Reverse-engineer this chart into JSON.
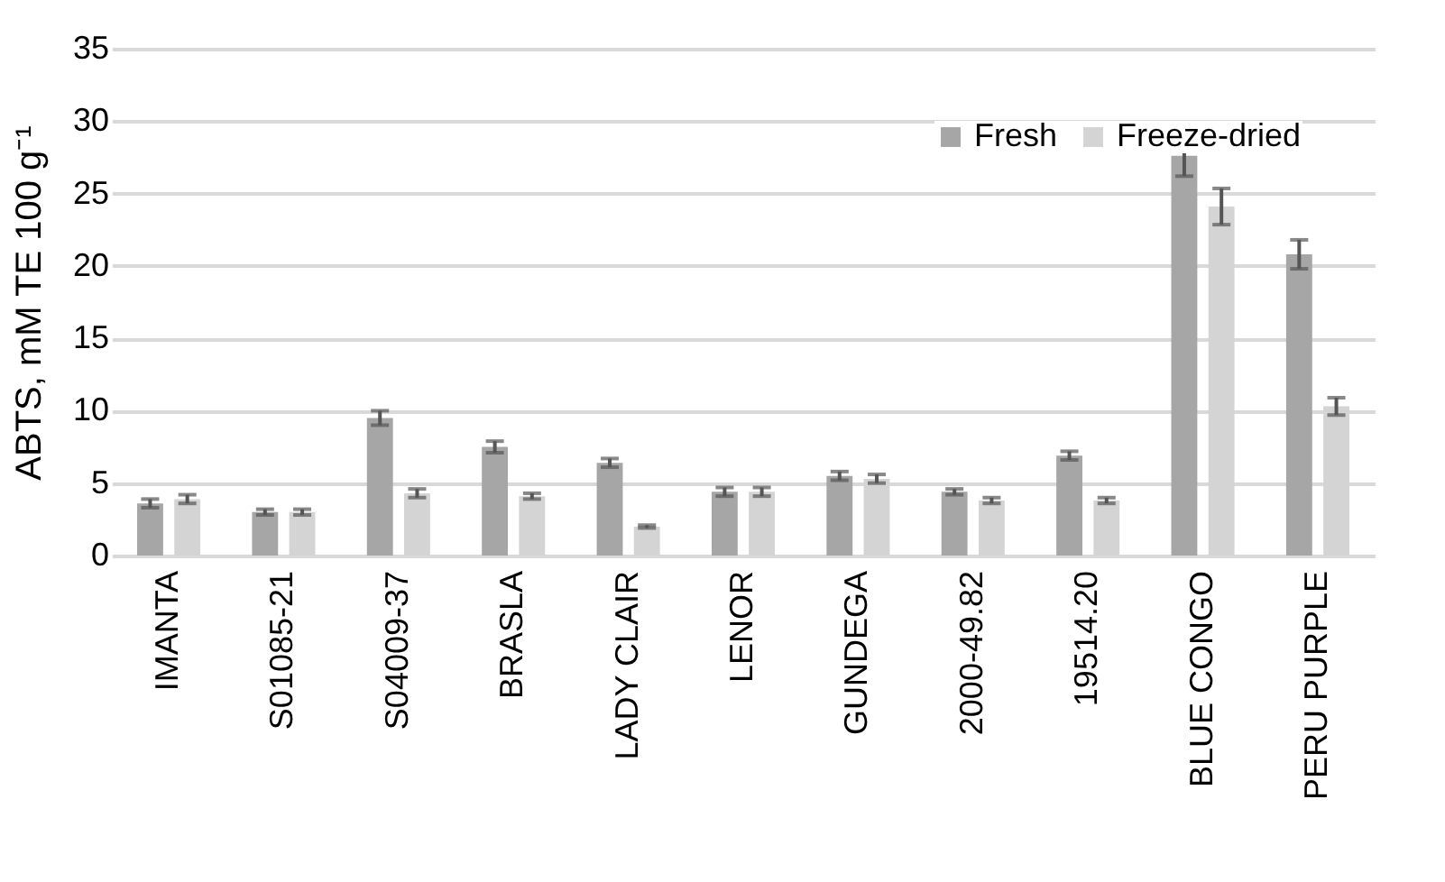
{
  "chart_data": {
    "type": "bar",
    "ylabel": "ABTS, mM TE 100 g⁻¹",
    "categories": [
      "IMANTA",
      "S01085-21",
      "S04009-37",
      "BRASLA",
      "LADY CLAIR",
      "LENOR",
      "GUNDEGA",
      "2000-49.82",
      "19514.20",
      "BLUE CONGO",
      "PERU PURPLE"
    ],
    "series": [
      {
        "name": "Fresh",
        "color": "#a6a6a6",
        "values": [
          3.6,
          3.0,
          9.5,
          7.5,
          6.4,
          4.4,
          5.5,
          4.4,
          6.9,
          27.6,
          20.8
        ],
        "errors": [
          0.3,
          0.2,
          0.5,
          0.4,
          0.3,
          0.3,
          0.3,
          0.2,
          0.3,
          1.4,
          1.0
        ]
      },
      {
        "name": "Freeze-dried",
        "color": "#d4d4d4",
        "values": [
          3.9,
          3.0,
          4.3,
          4.1,
          2.0,
          4.4,
          5.3,
          3.8,
          3.8,
          24.1,
          10.3
        ],
        "errors": [
          0.3,
          0.2,
          0.3,
          0.2,
          0.1,
          0.3,
          0.3,
          0.2,
          0.2,
          1.25,
          0.6
        ]
      }
    ],
    "ylim": [
      0,
      35
    ],
    "yticks": [
      0,
      5,
      10,
      15,
      20,
      25,
      30,
      35
    ],
    "grid": "y",
    "legend": "top right"
  }
}
